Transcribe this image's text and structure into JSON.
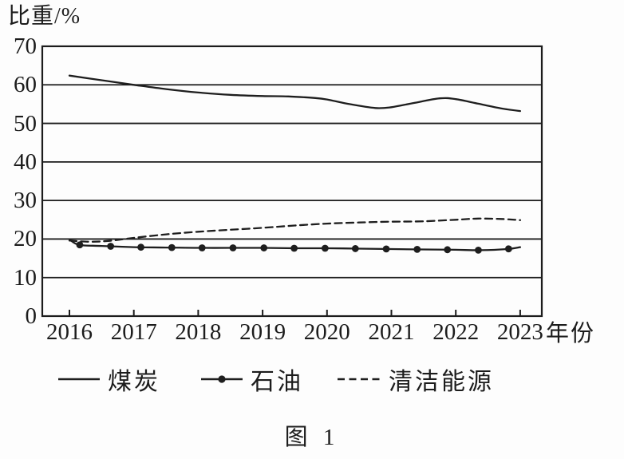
{
  "page": {
    "background": "#fdfdfd",
    "ink_color": "#1c1c1c",
    "caption": "图 1"
  },
  "chart_data": {
    "type": "line",
    "title": "图 1",
    "ylabel": "比重/%",
    "xlabel": "年份",
    "x_years": [
      2016,
      2017,
      2018,
      2019,
      2020,
      2021,
      2022,
      2023
    ],
    "ylim": [
      0,
      70
    ],
    "yticks": [
      0,
      10,
      20,
      30,
      40,
      50,
      60,
      70
    ],
    "grid": "horizontal-solid-lines",
    "legend_position": "bottom",
    "frame": "full-box",
    "series": [
      {
        "name": "煤炭",
        "line_style": "solid",
        "color": "#1e1e1e",
        "values": [
          62.4,
          60.0,
          58.0,
          57.0,
          56.2,
          54.3,
          56.2,
          53.2
        ],
        "detail_points": [
          [
            2016,
            62.4
          ],
          [
            2016.5,
            61.2
          ],
          [
            2017,
            60.0
          ],
          [
            2017.5,
            58.9
          ],
          [
            2018,
            58.0
          ],
          [
            2018.5,
            57.4
          ],
          [
            2019,
            57.1
          ],
          [
            2019.4,
            57.0
          ],
          [
            2019.8,
            56.6
          ],
          [
            2020,
            56.2
          ],
          [
            2020.35,
            55.0
          ],
          [
            2020.75,
            54.0
          ],
          [
            2021,
            54.2
          ],
          [
            2021.35,
            55.3
          ],
          [
            2021.75,
            56.5
          ],
          [
            2022,
            56.3
          ],
          [
            2022.35,
            55.1
          ],
          [
            2022.7,
            53.9
          ],
          [
            2023,
            53.2
          ]
        ]
      },
      {
        "name": "石油",
        "line_style": "solid-with-dot-markers",
        "color": "#1e1e1e",
        "values": [
          19.9,
          17.9,
          17.7,
          17.7,
          17.6,
          17.4,
          17.2,
          17.9
        ],
        "marker_years": [
          2016.16,
          2016.64,
          2017.11,
          2017.59,
          2018.06,
          2018.54,
          2019.02,
          2019.49,
          2019.97,
          2020.44,
          2020.92,
          2021.4,
          2021.87,
          2022.35,
          2022.82
        ],
        "detail_points": [
          [
            2016,
            19.9
          ],
          [
            2016.15,
            18.5
          ],
          [
            2016.5,
            18.2
          ],
          [
            2017,
            17.9
          ],
          [
            2017.5,
            17.8
          ],
          [
            2018,
            17.7
          ],
          [
            2018.5,
            17.7
          ],
          [
            2019,
            17.7
          ],
          [
            2019.5,
            17.6
          ],
          [
            2020,
            17.6
          ],
          [
            2020.5,
            17.5
          ],
          [
            2021,
            17.4
          ],
          [
            2021.5,
            17.3
          ],
          [
            2022,
            17.2
          ],
          [
            2022.4,
            17.1
          ],
          [
            2022.8,
            17.4
          ],
          [
            2023,
            17.9
          ]
        ]
      },
      {
        "name": "清洁能源",
        "line_style": "dashed",
        "color": "#1e1e1e",
        "values": [
          19.6,
          20.3,
          21.9,
          22.9,
          24.0,
          24.5,
          25.0,
          24.9
        ],
        "detail_points": [
          [
            2016,
            19.6
          ],
          [
            2016.3,
            19.3
          ],
          [
            2016.6,
            19.5
          ],
          [
            2017,
            20.3
          ],
          [
            2017.5,
            21.2
          ],
          [
            2018,
            21.9
          ],
          [
            2018.5,
            22.4
          ],
          [
            2019,
            22.9
          ],
          [
            2019.5,
            23.5
          ],
          [
            2020,
            24.0
          ],
          [
            2020.5,
            24.3
          ],
          [
            2021,
            24.5
          ],
          [
            2021.5,
            24.6
          ],
          [
            2022,
            25.0
          ],
          [
            2022.35,
            25.3
          ],
          [
            2022.7,
            25.2
          ],
          [
            2023,
            24.9
          ]
        ]
      }
    ]
  }
}
